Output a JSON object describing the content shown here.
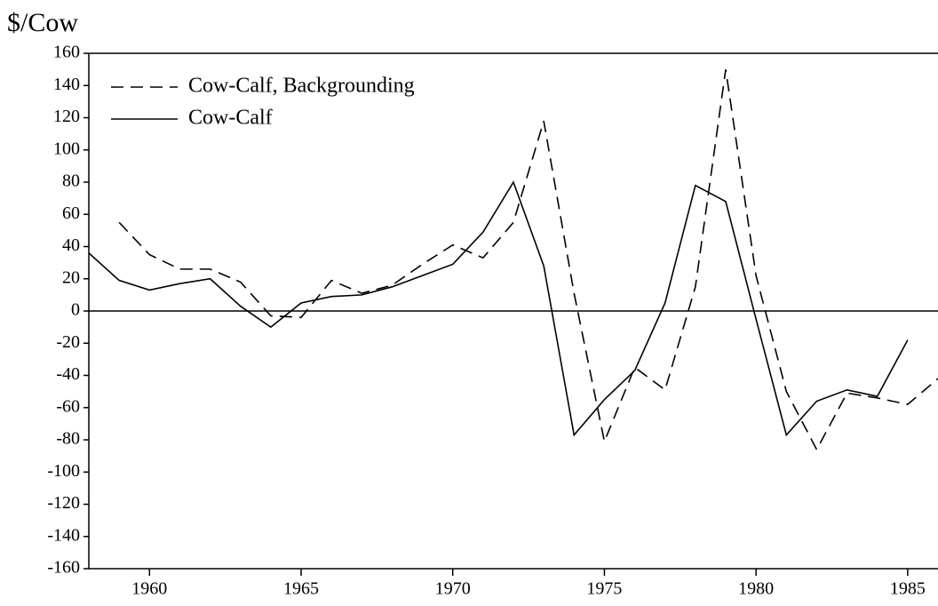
{
  "chart_data": {
    "type": "line",
    "y_label": "$/Cow",
    "x": [
      1958,
      1959,
      1960,
      1961,
      1962,
      1963,
      1964,
      1965,
      1966,
      1967,
      1968,
      1969,
      1970,
      1971,
      1972,
      1973,
      1974,
      1975,
      1976,
      1977,
      1978,
      1979,
      1980,
      1981,
      1982,
      1983,
      1984,
      1985,
      1986
    ],
    "series": [
      {
        "name": "Cow-Calf, Backgrounding",
        "color": "#000000",
        "dash": true,
        "values": [
          null,
          55,
          35,
          26,
          26,
          18,
          -3,
          -4,
          19,
          11,
          16,
          29,
          41,
          33,
          55,
          118,
          11,
          -81,
          -35,
          -49,
          15,
          150,
          22,
          -50,
          -86,
          -51,
          -54,
          -58,
          -42
        ]
      },
      {
        "name": "Cow-Calf",
        "color": "#000000",
        "dash": false,
        "values": [
          36,
          19,
          13,
          17,
          20,
          3,
          -10,
          5,
          9,
          10,
          15,
          22,
          29,
          49,
          80,
          28,
          -77,
          -55,
          -37,
          5,
          78,
          68,
          -5,
          -77,
          -56,
          -49,
          -53,
          -18,
          null
        ]
      }
    ],
    "xlim": [
      1958,
      1986
    ],
    "xticks": [
      1960,
      1965,
      1970,
      1975,
      1980,
      1985
    ],
    "ylim": [
      -160,
      160
    ],
    "yticks": [
      -160,
      -140,
      -120,
      -100,
      -80,
      -60,
      -40,
      -20,
      0,
      20,
      40,
      60,
      80,
      100,
      120,
      140,
      160
    ],
    "legend": "upper left"
  }
}
